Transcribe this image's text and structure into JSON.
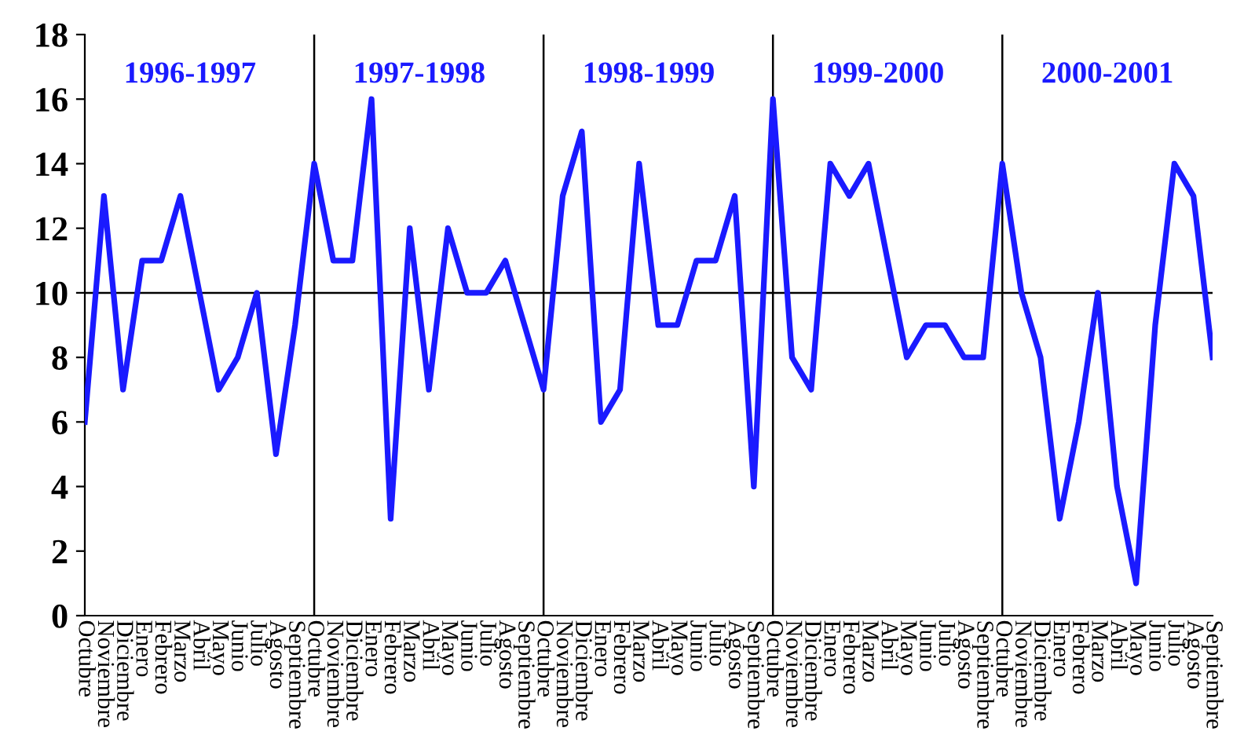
{
  "chart_data": {
    "type": "line",
    "categories": [
      "Octubre",
      "Noviembre",
      "Diciembre",
      "Enero",
      "Febrero",
      "Marzo",
      "Abril",
      "Mayo",
      "Junio",
      "Julio",
      "Agosto",
      "Septiembre",
      "Octubre",
      "Noviembre",
      "Diciembre",
      "Enero",
      "Febrero",
      "Marzo",
      "Abril",
      "Mayo",
      "Junio",
      "Julio",
      "Agosto",
      "Septiembre",
      "Octubre",
      "Noviembre",
      "Diciembre",
      "Enero",
      "Febrero",
      "Marzo",
      "Abril",
      "Mayo",
      "Junio",
      "Julio",
      "Agosto",
      "Septiembre",
      "Octubre",
      "Noviembre",
      "Diciembre",
      "Enero",
      "Febrero",
      "Marzo",
      "Abril",
      "Mayo",
      "Junio",
      "Julio",
      "Agosto",
      "Septiembre",
      "Octubre",
      "Noviembre",
      "Diciembre",
      "Enero",
      "Febrero",
      "Marzo",
      "Abril",
      "Mayo",
      "Junio",
      "Julio",
      "Agosto",
      "Septiembre"
    ],
    "series": [
      {
        "color": "#1a1aff",
        "values": [
          6,
          13,
          7,
          11,
          11,
          13,
          10,
          7,
          8,
          10,
          5,
          9,
          14,
          11,
          11,
          16,
          3,
          12,
          7,
          12,
          10,
          10,
          11,
          9,
          7,
          13,
          15,
          6,
          7,
          14,
          9,
          9,
          11,
          11,
          13,
          4,
          16,
          8,
          7,
          14,
          13,
          14,
          11,
          8,
          9,
          9,
          8,
          8,
          14,
          10,
          8,
          3,
          6,
          10,
          4,
          1,
          9,
          14,
          13,
          8
        ]
      }
    ],
    "ylim": [
      0,
      18
    ],
    "yticks": [
      0,
      2,
      4,
      6,
      8,
      10,
      12,
      14,
      16,
      18
    ],
    "grid": false,
    "legend": false,
    "marker": "none",
    "line_style": "solid",
    "ref_lines": [
      {
        "axis": "y",
        "value": 10,
        "color": "#000000"
      }
    ],
    "annotations": [
      "1996-1997",
      "1997-1998",
      "1998-1999",
      "1999-2000",
      "2000-2001"
    ]
  }
}
